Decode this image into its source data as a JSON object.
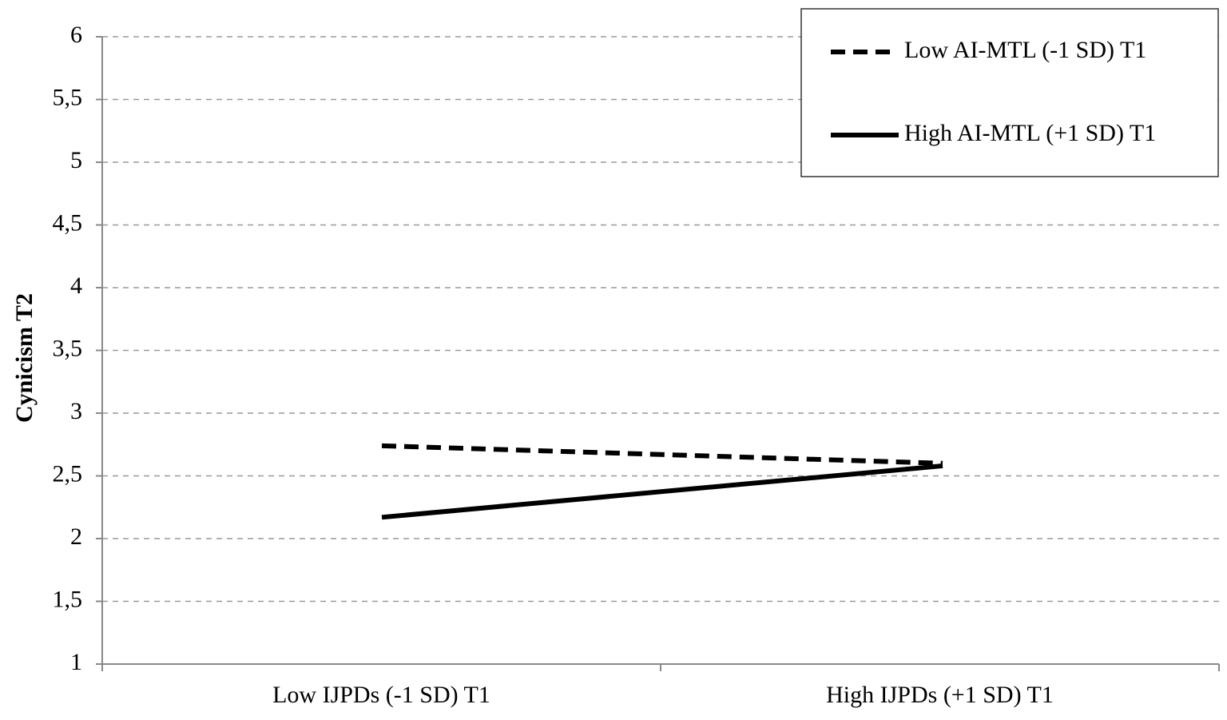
{
  "chart_data": {
    "type": "line",
    "title": "",
    "xlabel": "",
    "ylabel": "Cynicism T2",
    "categories": [
      "Low IJPDs (-1 SD) T1",
      "High IJPDs (+1 SD) T1"
    ],
    "ylim": [
      1,
      6
    ],
    "yticks": [
      1,
      1.5,
      2,
      2.5,
      3,
      3.5,
      4,
      4.5,
      5,
      5.5,
      6
    ],
    "ytick_labels": [
      "1",
      "1,5",
      "2",
      "2,5",
      "3",
      "3,5",
      "4",
      "4,5",
      "5",
      "5,5",
      "6"
    ],
    "grid": "horizontal dashed",
    "legend_position": "top-right",
    "series": [
      {
        "name": "Low AI-MTL (-1 SD) T1",
        "style": "dashed",
        "color": "#000000",
        "values": [
          2.74,
          2.6
        ]
      },
      {
        "name": "High AI-MTL (+1 SD) T1",
        "style": "solid",
        "color": "#000000",
        "values": [
          2.17,
          2.58
        ]
      }
    ]
  }
}
